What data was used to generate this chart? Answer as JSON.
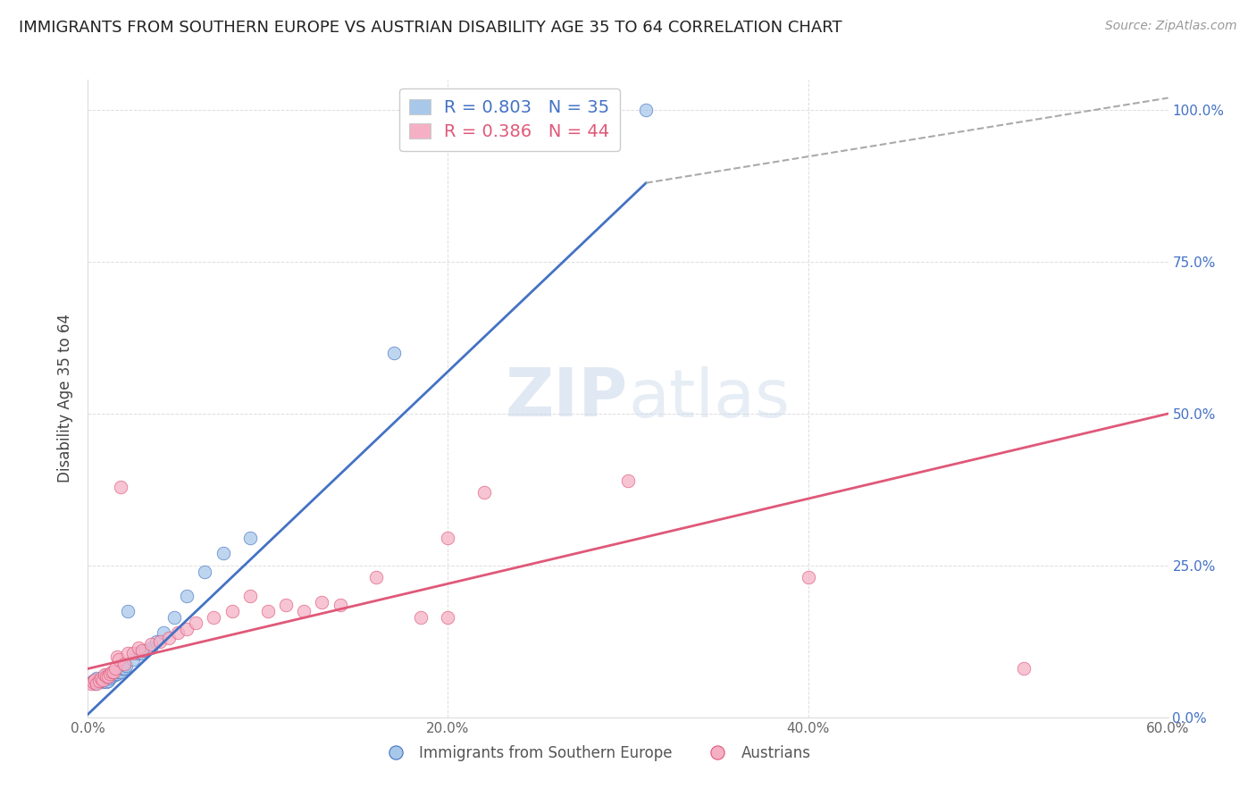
{
  "title": "IMMIGRANTS FROM SOUTHERN EUROPE VS AUSTRIAN DISABILITY AGE 35 TO 64 CORRELATION CHART",
  "source": "Source: ZipAtlas.com",
  "ylabel": "Disability Age 35 to 64",
  "x_tick_labels": [
    "0.0%",
    "20.0%",
    "40.0%",
    "60.0%"
  ],
  "y_tick_labels_right": [
    "0.0%",
    "25.0%",
    "50.0%",
    "75.0%",
    "100.0%"
  ],
  "xlim": [
    0.0,
    0.6
  ],
  "ylim": [
    0.0,
    1.05
  ],
  "blue_R": "0.803",
  "blue_N": "35",
  "pink_R": "0.386",
  "pink_N": "44",
  "blue_color": "#a8c8ea",
  "pink_color": "#f5b0c5",
  "blue_line_color": "#4472c4",
  "pink_line_color": "#e05878",
  "dashed_line_color": "#aaaaaa",
  "watermark_zip": "ZIP",
  "watermark_atlas": "atlas",
  "legend_label_blue": "Immigrants from Southern Europe",
  "legend_label_pink": "Austrians",
  "blue_scatter_x": [
    0.003,
    0.004,
    0.005,
    0.006,
    0.007,
    0.008,
    0.009,
    0.01,
    0.01,
    0.011,
    0.012,
    0.013,
    0.014,
    0.015,
    0.016,
    0.017,
    0.018,
    0.019,
    0.02,
    0.021,
    0.022,
    0.025,
    0.028,
    0.03,
    0.032,
    0.035,
    0.038,
    0.042,
    0.048,
    0.055,
    0.065,
    0.075,
    0.09,
    0.17,
    0.31
  ],
  "blue_scatter_y": [
    0.06,
    0.055,
    0.065,
    0.058,
    0.062,
    0.058,
    0.065,
    0.058,
    0.07,
    0.06,
    0.065,
    0.068,
    0.072,
    0.07,
    0.072,
    0.075,
    0.075,
    0.08,
    0.08,
    0.085,
    0.175,
    0.095,
    0.105,
    0.105,
    0.11,
    0.115,
    0.125,
    0.14,
    0.165,
    0.2,
    0.24,
    0.27,
    0.295,
    0.6,
    1.0
  ],
  "pink_scatter_x": [
    0.002,
    0.003,
    0.004,
    0.005,
    0.006,
    0.007,
    0.008,
    0.009,
    0.01,
    0.011,
    0.012,
    0.013,
    0.014,
    0.015,
    0.016,
    0.017,
    0.018,
    0.02,
    0.022,
    0.025,
    0.028,
    0.03,
    0.035,
    0.04,
    0.045,
    0.05,
    0.055,
    0.06,
    0.07,
    0.08,
    0.09,
    0.1,
    0.11,
    0.12,
    0.13,
    0.14,
    0.16,
    0.185,
    0.2,
    0.2,
    0.22,
    0.3,
    0.4,
    0.52
  ],
  "pink_scatter_y": [
    0.055,
    0.058,
    0.062,
    0.055,
    0.06,
    0.065,
    0.062,
    0.07,
    0.068,
    0.068,
    0.072,
    0.075,
    0.075,
    0.08,
    0.1,
    0.095,
    0.38,
    0.088,
    0.105,
    0.105,
    0.115,
    0.11,
    0.12,
    0.125,
    0.13,
    0.14,
    0.145,
    0.155,
    0.165,
    0.175,
    0.2,
    0.175,
    0.185,
    0.175,
    0.19,
    0.185,
    0.23,
    0.165,
    0.295,
    0.165,
    0.37,
    0.39,
    0.23,
    0.08
  ],
  "blue_trendline_x": [
    0.0,
    0.31
  ],
  "blue_trendline_y": [
    0.005,
    0.88
  ],
  "pink_trendline_x": [
    0.0,
    0.6
  ],
  "pink_trendline_y": [
    0.08,
    0.5
  ],
  "dashed_line_x": [
    0.31,
    0.6
  ],
  "dashed_line_y": [
    0.88,
    1.02
  ],
  "x_ticks": [
    0.0,
    0.2,
    0.4,
    0.6
  ],
  "y_ticks": [
    0.0,
    0.25,
    0.5,
    0.75,
    1.0
  ],
  "grid_color": "#dddddd",
  "title_fontsize": 13,
  "axis_label_fontsize": 12,
  "tick_fontsize": 11,
  "right_tick_color": "#4472c4",
  "source_color": "#999999"
}
